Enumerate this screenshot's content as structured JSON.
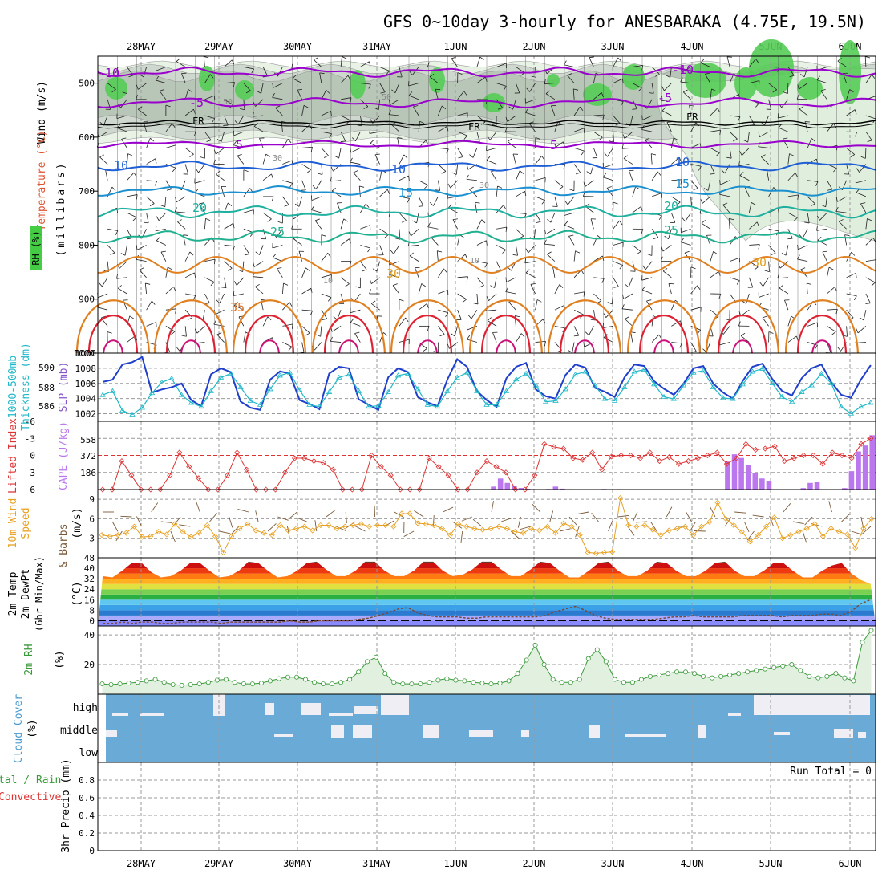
{
  "title": "GFS 0~10day 3-hourly for ANESBARAKA (4.75E, 19.5N)",
  "days": [
    "28MAY",
    "29MAY",
    "30MAY",
    "31MAY",
    "1JUN",
    "2JUN",
    "3JUN",
    "4JUN",
    "5JUN",
    "6JUN"
  ],
  "colors": {
    "rh_green": "#5fd35f",
    "temp_purple": "#9900cc",
    "temp_blue": "#1f5fd6",
    "temp_teal": "#1fb0a0",
    "temp_orange": "#e08020",
    "temp_red": "#dd2233",
    "slp_blue": "#1f3fcc",
    "thick_cyan": "#20b8c8",
    "li_red": "#dd3333",
    "cape_purple": "#bb77ee",
    "wind_orange": "#e8a020",
    "barb_brown": "#7a5a3a",
    "rh2m_green": "#3a9a3a",
    "cloud_blue": "#6aaad6"
  },
  "chart_data": [
    {
      "panel": "upper-air",
      "type": "heatmap",
      "ylabels": [
        "Temperature (°C)",
        "Wind (m/s)",
        "RH (%)",
        "(millibars)"
      ],
      "yticks": [
        500,
        600,
        700,
        800,
        900,
        1000
      ],
      "ylim": [
        1000,
        450
      ],
      "contour_labels": [
        "-10",
        "-5",
        "5",
        "10",
        "15",
        "20",
        "25",
        "30",
        "35",
        "FR",
        "50",
        "30",
        "10"
      ]
    },
    {
      "panel": "slp-thickness",
      "type": "line",
      "ylabel_left": "1000-500mb Thickness (dm)",
      "ylabel_right": "SLP (mb)",
      "left_ticks": [
        "590",
        "588",
        "586"
      ],
      "right_ticks": [
        "1008",
        "1006",
        "1004",
        "1002"
      ],
      "right_ylim": [
        1001,
        1010
      ],
      "series": [
        {
          "name": "SLP",
          "values": [
            1006.2,
            1006.5,
            1008.5,
            1008.8,
            1009.5,
            1004.8,
            1005.2,
            1005.5,
            1006.0,
            1003.8,
            1003.0,
            1007.2,
            1008.0,
            1007.5,
            1003.6,
            1002.8,
            1002.5,
            1006.5,
            1007.6,
            1007.3,
            1003.8,
            1003.3,
            1002.6,
            1007.3,
            1008.2,
            1008.0,
            1003.9,
            1003.2,
            1002.5,
            1006.8,
            1008.0,
            1007.5,
            1004.2,
            1003.5,
            1003.0,
            1006.5,
            1009.2,
            1008.2,
            1005.0,
            1003.8,
            1002.9,
            1006.7,
            1008.2,
            1008.7,
            1005.2,
            1004.3,
            1004.0,
            1007.1,
            1008.5,
            1008.1,
            1005.4,
            1004.9,
            1004.2,
            1006.8,
            1008.5,
            1008.3,
            1006.3,
            1005.3,
            1004.5,
            1006.0,
            1008.0,
            1008.3,
            1006.0,
            1004.8,
            1004.0,
            1006.3,
            1008.2,
            1008.6,
            1006.6,
            1005.0,
            1004.4,
            1006.7,
            1008.0,
            1008.5,
            1006.2,
            1004.5,
            1004.1,
            1006.5,
            1008.4
          ]
        },
        {
          "name": "Thickness",
          "values": [
            587.2,
            587.6,
            585.6,
            585.2,
            585.9,
            587.4,
            588.5,
            588.9,
            587.2,
            586.4,
            586.0,
            587.6,
            589.0,
            589.4,
            588.0,
            586.6,
            586.2,
            587.8,
            589.2,
            589.5,
            587.7,
            586.2,
            586.0,
            587.5,
            589.0,
            589.3,
            587.6,
            586.0,
            586.1,
            587.5,
            589.2,
            589.4,
            587.8,
            586.2,
            586.0,
            587.6,
            589.0,
            589.5,
            587.6,
            586.2,
            586.2,
            587.6,
            588.8,
            589.4,
            588.2,
            586.5,
            586.6,
            587.8,
            589.3,
            589.6,
            588.2,
            586.8,
            586.6,
            588.0,
            589.6,
            589.8,
            588.3,
            587.0,
            586.8,
            588.2,
            589.5,
            589.7,
            588.0,
            586.9,
            586.8,
            588.3,
            589.6,
            589.9,
            588.4,
            587.0,
            586.5,
            587.5,
            588.2,
            589.4,
            588.4,
            586.0,
            585.3,
            586.0,
            586.4
          ]
        }
      ]
    },
    {
      "panel": "li-cape",
      "type": "line",
      "ylabel_left": "Lifted Index",
      "ylabel_right": "CAPE (J/kg)",
      "left_ticks": [
        "-6",
        "-3",
        "0",
        "3",
        "6"
      ],
      "right_ticks": [
        "558",
        "372",
        "186"
      ],
      "series": [
        {
          "name": "Lifted Index",
          "values": [
            6,
            6,
            1,
            3.5,
            6,
            6,
            6,
            3.5,
            -0.5,
            2,
            4,
            6,
            6,
            3.5,
            -0.5,
            2.5,
            6,
            6,
            6,
            3,
            0.5,
            0.5,
            1,
            1.3,
            2.5,
            6,
            6,
            6,
            0,
            2,
            3.5,
            6,
            6,
            6,
            0.5,
            2,
            3.5,
            6,
            6,
            3,
            1,
            2,
            3,
            6,
            6,
            3.5,
            -2,
            -1.5,
            -1.2,
            0.5,
            0.8,
            -0.5,
            2.5,
            0.2,
            0,
            0,
            0.5,
            -0.5,
            1,
            0.3,
            1.5,
            1,
            0.5,
            0,
            -0.5,
            1.5,
            0.5,
            -2,
            -1,
            -1.2,
            -1.6,
            1,
            0.5,
            0,
            0,
            1.5,
            -0.5,
            0,
            0.5,
            -2,
            -3
          ]
        },
        {
          "name": "CAPE",
          "values": [
            0,
            0,
            0,
            0,
            0,
            0,
            0,
            0,
            0,
            0,
            0,
            0,
            0,
            0,
            0,
            0,
            0,
            0,
            0,
            0,
            0,
            0,
            0,
            0,
            0,
            0,
            0,
            0,
            0,
            0,
            0,
            0,
            0,
            0,
            0,
            12,
            8,
            0,
            0,
            0,
            0,
            0,
            0,
            0,
            0,
            0,
            0,
            0,
            0,
            0,
            0,
            0,
            0,
            0,
            0,
            0,
            0,
            40,
            150,
            90,
            45,
            22,
            10,
            0,
            0,
            8,
            40,
            12,
            6,
            0,
            0,
            0,
            0,
            8,
            5,
            6,
            5,
            0,
            0,
            0,
            0,
            0,
            0,
            0,
            0,
            0,
            0,
            0,
            0,
            0,
            0,
            380,
            480,
            430,
            330,
            220,
            150,
            120,
            0,
            0,
            0,
            0,
            20,
            90,
            100,
            0,
            0,
            0,
            20,
            250,
            520,
            600,
            740
          ]
        }
      ]
    },
    {
      "panel": "10m-wind",
      "type": "line",
      "ylabel": "10m Wind Speed & Barbs (m/s)",
      "yticks": [
        "9",
        "6",
        "3"
      ],
      "ylim": [
        0,
        10.5
      ],
      "series": [
        {
          "name": "10m Wind Speed",
          "values": [
            3.5,
            3.3,
            3.5,
            3.8,
            4.8,
            3.2,
            3.3,
            4,
            3.6,
            5.2,
            4,
            3.2,
            3.8,
            5,
            3.3,
            0.8,
            3.3,
            4.5,
            5.2,
            4.2,
            3.8,
            3.5,
            5,
            4.2,
            4.5,
            4.8,
            4.2,
            5,
            5,
            4.5,
            4.8,
            5,
            5.2,
            4.8,
            5,
            5,
            4.8,
            6.8,
            6.8,
            5.3,
            5.2,
            5,
            4.5,
            3.5,
            5.2,
            4.8,
            4.5,
            4.3,
            4.5,
            4.8,
            4.5,
            4,
            3.8,
            4.5,
            4.2,
            4.8,
            3.8,
            5.3,
            4.8,
            3.5,
            0.8,
            0.7,
            0.8,
            0.9,
            9.2,
            5,
            4.8,
            5,
            4.3,
            3.5,
            4.2,
            4.5,
            4.8,
            3.5,
            4.8,
            5.5,
            8.5,
            6,
            5,
            4,
            2.5,
            3.5,
            4.8,
            6.2,
            3,
            3.5,
            4,
            4.5,
            5.2,
            3.3,
            4.5,
            4,
            3.6,
            1.5,
            4.5,
            6
          ]
        }
      ]
    },
    {
      "panel": "2m-temp",
      "type": "area",
      "ylabel": "2m Temp 2m DewPt (6hr Min/Max) (°C)",
      "yticks": [
        "48",
        "40",
        "32",
        "24",
        "16",
        "8",
        "0"
      ],
      "ylim": [
        -4,
        48
      ],
      "series": [
        {
          "name": "2m Temp",
          "values": [
            34,
            33,
            38,
            44,
            44,
            37,
            33,
            34,
            38,
            44,
            44,
            38,
            33,
            34,
            38,
            45,
            44,
            38,
            33,
            34,
            38,
            44,
            45,
            39,
            34,
            34,
            38,
            45,
            45,
            38,
            34,
            34,
            38,
            45,
            45,
            38,
            34,
            35,
            39,
            45,
            45,
            39,
            34,
            34,
            39,
            45,
            44,
            38,
            33,
            33,
            38,
            44,
            45,
            38,
            34,
            34,
            38,
            45,
            44,
            38,
            34,
            34,
            38,
            44,
            45,
            38,
            34,
            34,
            38,
            44,
            44,
            38,
            33,
            33,
            38,
            42,
            44,
            36,
            31,
            28
          ]
        },
        {
          "name": "2m DewPt",
          "values": [
            -2,
            -2,
            -1,
            -2,
            -1,
            -1,
            -2,
            -2,
            -1,
            -1,
            -1,
            -1,
            -2,
            -1,
            -1,
            -1,
            -1,
            -1,
            -1,
            0,
            -1,
            -1,
            0,
            0,
            0,
            0,
            1,
            2,
            4,
            6,
            9,
            10,
            6,
            4,
            3,
            3,
            3,
            2,
            2,
            3,
            3,
            3,
            3,
            3,
            3,
            4,
            7,
            9,
            11,
            8,
            4,
            2,
            1,
            1,
            1,
            1,
            1,
            2,
            3,
            3,
            4,
            3,
            3,
            3,
            3,
            4,
            4,
            4,
            4,
            3,
            4,
            4,
            4,
            5,
            5,
            4,
            7,
            13,
            16
          ]
        }
      ]
    },
    {
      "panel": "2m-rh",
      "type": "area",
      "ylabel": "2m RH (%)",
      "yticks": [
        "40",
        "20"
      ],
      "ylim": [
        0,
        46
      ],
      "series": [
        {
          "name": "2m RH",
          "values": [
            7,
            6.5,
            7,
            7.5,
            8,
            9,
            10,
            8,
            6.5,
            6,
            6.5,
            7,
            8,
            9.5,
            10,
            8,
            7,
            7,
            7.5,
            9,
            10.5,
            11.5,
            11.5,
            10,
            8,
            7,
            7,
            8,
            10,
            15,
            22,
            25,
            14,
            8,
            7,
            7,
            7,
            8,
            9.5,
            10.5,
            9.5,
            9,
            8,
            7.5,
            7,
            7.5,
            9,
            14,
            23,
            33,
            20,
            10,
            8,
            8,
            10,
            24,
            30,
            22,
            10,
            8,
            8,
            10,
            12,
            13,
            14,
            15,
            15,
            14,
            12,
            11,
            12,
            13,
            14,
            15,
            16,
            17,
            18,
            19,
            20,
            16,
            12,
            11,
            12,
            14,
            11,
            9,
            35,
            43
          ]
        }
      ]
    },
    {
      "panel": "cloud-cover",
      "type": "heatmap",
      "ylabel": "Cloud Cover (%)",
      "levels": [
        "high",
        "middle",
        "low"
      ]
    },
    {
      "panel": "precip",
      "type": "bar",
      "ylabel": "Total / Rain Convective 3hr Precip (mm)",
      "yticks": [
        "0.8",
        "0.6",
        "0.4",
        "0.2",
        "0"
      ],
      "ylim": [
        0,
        1
      ],
      "annotation": "Run Total = 0",
      "values": []
    }
  ],
  "axis_labels": {
    "p1_a": "Wind (m/s)",
    "p1_b": "Temperature (°C)",
    "p1_c": "RH (%)",
    "p1_d": "(millibars)",
    "p2_a": "1000-500mb",
    "p2_b": "Thickness (dm)",
    "p2_c": "SLP (mb)",
    "p3_a": "Lifted Index",
    "p3_b": "CAPE (J/kg)",
    "p4_a": "10m Wind",
    "p4_b": "Speed",
    "p4_c": "& Barbs",
    "p4_d": "(m/s)",
    "p5_a": "2m Temp",
    "p5_b": "2m DewPt",
    "p5_c": "(6hr Min/Max)",
    "p5_d": "(°C)",
    "p6_a": "2m RH",
    "p6_b": "(%)",
    "p7_a": "Cloud Cover",
    "p7_b": "(%)",
    "p8_a": "tal / Rain",
    "p8_b": "Convective",
    "p8_c": "3hr Precip (mm)"
  },
  "contours": {
    "m10a": "-10",
    "m10b": "-10",
    "m5a": "-5",
    "m5b": "-5",
    "p5a": "5",
    "p5b": "5",
    "p10a": "10",
    "p10b": "10",
    "p10c": "10",
    "p15a": "15",
    "p15b": "15",
    "p20a": "20",
    "p20b": "20",
    "p25a": "25",
    "p25b": "25",
    "p30a": "30",
    "p30b": "30",
    "p35": "35",
    "fr1": "FR",
    "fr2": "FR",
    "fr3": "FR",
    "rh50a": "50",
    "rh50b": "50",
    "rh30a": "30",
    "rh30b": "30",
    "rh10a": "10",
    "rh10b": "10"
  }
}
